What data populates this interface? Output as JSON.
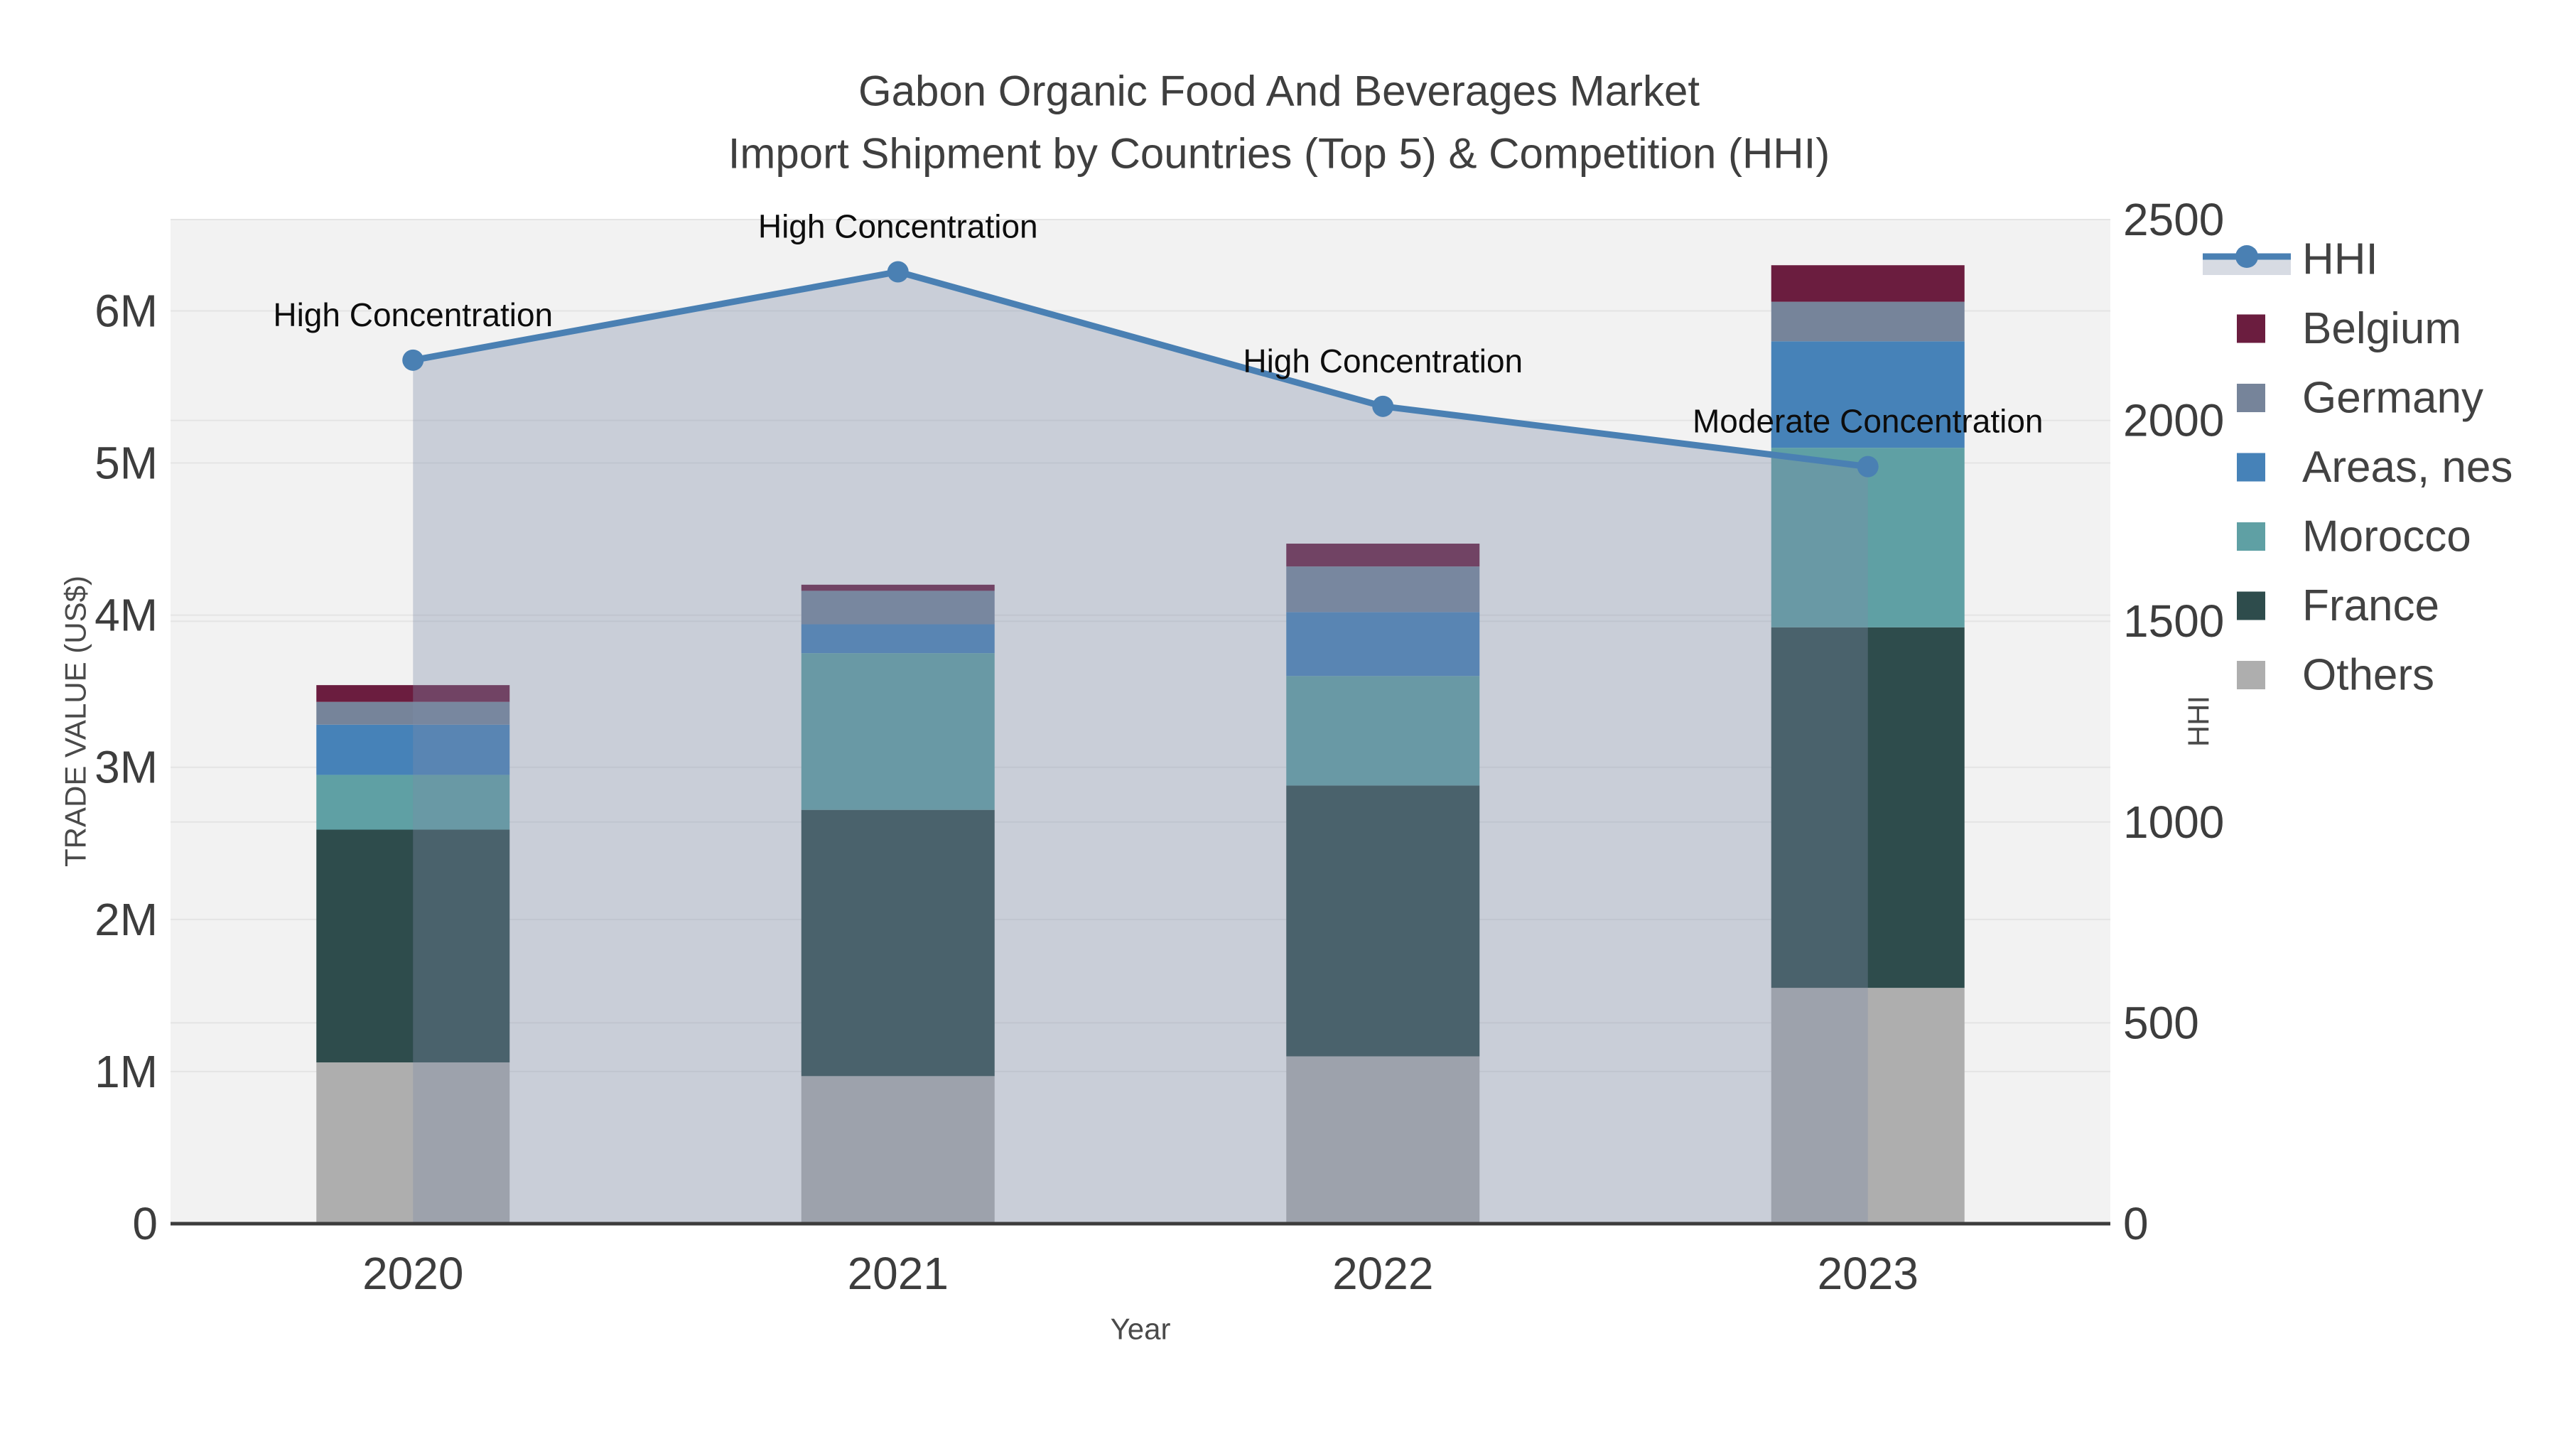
{
  "title": {
    "line1": "Gabon Organic Food And Beverages Market",
    "line2": "Import Shipment by Countries (Top 5) & Competition (HHI)"
  },
  "legend": {
    "items": [
      {
        "label": "HHI",
        "type": "line",
        "color": "#4a80b3"
      },
      {
        "label": "Belgium",
        "type": "swatch",
        "color": "#6b1d3f"
      },
      {
        "label": "Germany",
        "type": "swatch",
        "color": "#76849a"
      },
      {
        "label": "Areas, nes",
        "type": "swatch",
        "color": "#4682b8"
      },
      {
        "label": "Morocco",
        "type": "swatch",
        "color": "#5fa0a4"
      },
      {
        "label": "France",
        "type": "swatch",
        "color": "#2e4c4c"
      },
      {
        "label": "Others",
        "type": "swatch",
        "color": "#aeaeae"
      }
    ]
  },
  "chart_data": {
    "type": "bar+line",
    "categories": [
      "2020",
      "2021",
      "2022",
      "2023"
    ],
    "series": [
      {
        "name": "Others",
        "color": "#aeaeae",
        "values": [
          1060000,
          970000,
          1100000,
          1550000
        ]
      },
      {
        "name": "France",
        "color": "#2e4c4c",
        "values": [
          1530000,
          1750000,
          1780000,
          2370000
        ]
      },
      {
        "name": "Morocco",
        "color": "#5fa0a4",
        "values": [
          360000,
          1030000,
          720000,
          1180000
        ]
      },
      {
        "name": "Areas, nes",
        "color": "#4682b8",
        "values": [
          330000,
          190000,
          420000,
          700000
        ]
      },
      {
        "name": "Germany",
        "color": "#76849a",
        "values": [
          150000,
          220000,
          300000,
          260000
        ]
      },
      {
        "name": "Belgium",
        "color": "#6b1d3f",
        "values": [
          110000,
          40000,
          150000,
          240000
        ]
      }
    ],
    "line": {
      "name": "HHI",
      "color": "#4a80b3",
      "fill_color": "rgba(125,140,168,0.35)",
      "values": [
        2150,
        2370,
        2035,
        1885
      ],
      "axis": "right"
    },
    "annotations": [
      {
        "year": "2020",
        "text": "High Concentration"
      },
      {
        "year": "2021",
        "text": "High Concentration"
      },
      {
        "year": "2022",
        "text": "High Concentration"
      },
      {
        "year": "2023",
        "text": "Moderate Concentration"
      }
    ],
    "x": {
      "title": "Year"
    },
    "y_left": {
      "title": "TRADE VALUE (US$)",
      "tick_labels": [
        "0",
        "1M",
        "2M",
        "3M",
        "4M",
        "5M",
        "6M"
      ],
      "tick_values": [
        0,
        1000000,
        2000000,
        3000000,
        4000000,
        5000000,
        6000000
      ],
      "range": [
        0,
        6600000
      ]
    },
    "y_right": {
      "title": "HHI",
      "tick_labels": [
        "0",
        "500",
        "1000",
        "1500",
        "2000",
        "2500"
      ],
      "tick_values": [
        0,
        500,
        1000,
        1500,
        2000,
        2500
      ],
      "range": [
        0,
        2500
      ]
    },
    "grid": true,
    "legend_position": "right"
  },
  "colors": {
    "background": "#ffffff",
    "plot_background": "#f2f2f2",
    "gridline": "#e4e4e4",
    "axis_line": "#3c3c3c",
    "text": "#3d3d3d"
  }
}
